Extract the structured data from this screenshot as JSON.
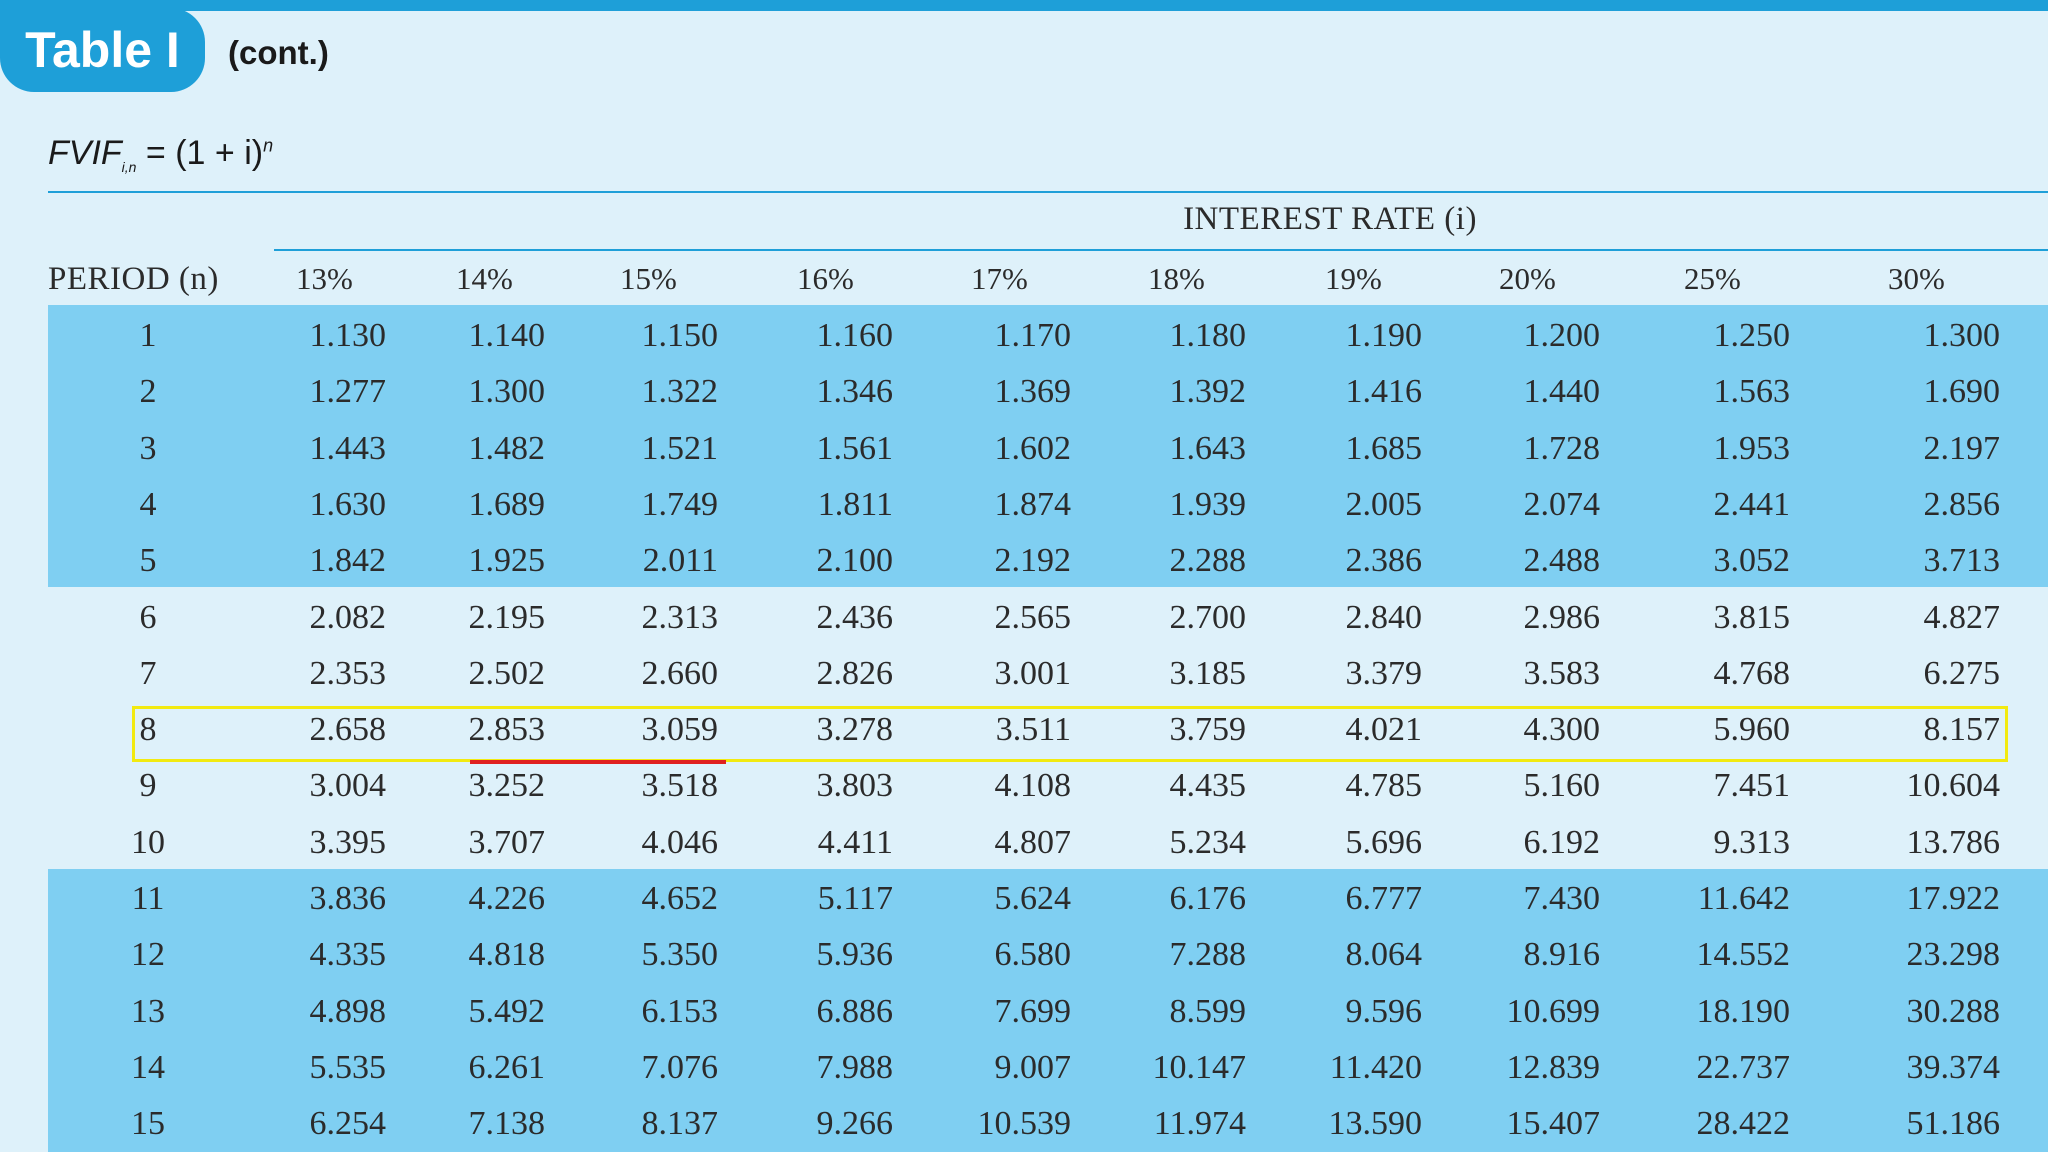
{
  "header": {
    "badge_label": "Table I",
    "cont_label": "(cont.)"
  },
  "formula": {
    "lhs": "FVIF",
    "subscript": "i,n",
    "rhs": "= (1 + i)",
    "superscript": "n"
  },
  "table": {
    "group_header": "INTEREST RATE (i)",
    "period_header": "PERIOD (n)",
    "rate_headers": [
      "13%",
      "14%",
      "15%",
      "16%",
      "17%",
      "18%",
      "19%",
      "20%",
      "25%",
      "30%"
    ],
    "rows": [
      {
        "period": "1",
        "values": [
          "1.130",
          "1.140",
          "1.150",
          "1.160",
          "1.170",
          "1.180",
          "1.190",
          "1.200",
          "1.250",
          "1.300"
        ]
      },
      {
        "period": "2",
        "values": [
          "1.277",
          "1.300",
          "1.322",
          "1.346",
          "1.369",
          "1.392",
          "1.416",
          "1.440",
          "1.563",
          "1.690"
        ]
      },
      {
        "period": "3",
        "values": [
          "1.443",
          "1.482",
          "1.521",
          "1.561",
          "1.602",
          "1.643",
          "1.685",
          "1.728",
          "1.953",
          "2.197"
        ]
      },
      {
        "period": "4",
        "values": [
          "1.630",
          "1.689",
          "1.749",
          "1.811",
          "1.874",
          "1.939",
          "2.005",
          "2.074",
          "2.441",
          "2.856"
        ]
      },
      {
        "period": "5",
        "values": [
          "1.842",
          "1.925",
          "2.011",
          "2.100",
          "2.192",
          "2.288",
          "2.386",
          "2.488",
          "3.052",
          "3.713"
        ]
      },
      {
        "period": "6",
        "values": [
          "2.082",
          "2.195",
          "2.313",
          "2.436",
          "2.565",
          "2.700",
          "2.840",
          "2.986",
          "3.815",
          "4.827"
        ]
      },
      {
        "period": "7",
        "values": [
          "2.353",
          "2.502",
          "2.660",
          "2.826",
          "3.001",
          "3.185",
          "3.379",
          "3.583",
          "4.768",
          "6.275"
        ]
      },
      {
        "period": "8",
        "values": [
          "2.658",
          "2.853",
          "3.059",
          "3.278",
          "3.511",
          "3.759",
          "4.021",
          "4.300",
          "5.960",
          "8.157"
        ]
      },
      {
        "period": "9",
        "values": [
          "3.004",
          "3.252",
          "3.518",
          "3.803",
          "4.108",
          "4.435",
          "4.785",
          "5.160",
          "7.451",
          "10.604"
        ]
      },
      {
        "period": "10",
        "values": [
          "3.395",
          "3.707",
          "4.046",
          "4.411",
          "4.807",
          "5.234",
          "5.696",
          "6.192",
          "9.313",
          "13.786"
        ]
      },
      {
        "period": "11",
        "values": [
          "3.836",
          "4.226",
          "4.652",
          "5.117",
          "5.624",
          "6.176",
          "6.777",
          "7.430",
          "11.642",
          "17.922"
        ]
      },
      {
        "period": "12",
        "values": [
          "4.335",
          "4.818",
          "5.350",
          "5.936",
          "6.580",
          "7.288",
          "8.064",
          "8.916",
          "14.552",
          "23.298"
        ]
      },
      {
        "period": "13",
        "values": [
          "4.898",
          "5.492",
          "6.153",
          "6.886",
          "7.699",
          "8.599",
          "9.596",
          "10.699",
          "18.190",
          "30.288"
        ]
      },
      {
        "period": "14",
        "values": [
          "5.535",
          "6.261",
          "7.076",
          "7.988",
          "9.007",
          "10.147",
          "11.420",
          "12.839",
          "22.737",
          "39.374"
        ]
      },
      {
        "period": "15",
        "values": [
          "6.254",
          "7.138",
          "8.137",
          "9.266",
          "10.539",
          "11.974",
          "13.590",
          "15.407",
          "28.422",
          "51.186"
        ]
      }
    ]
  },
  "annotations": {
    "highlight_color": "#f2ea10",
    "underline_color": "#e0201f",
    "band_color": "#7fcff2",
    "accent_color": "#1e9fd8"
  }
}
